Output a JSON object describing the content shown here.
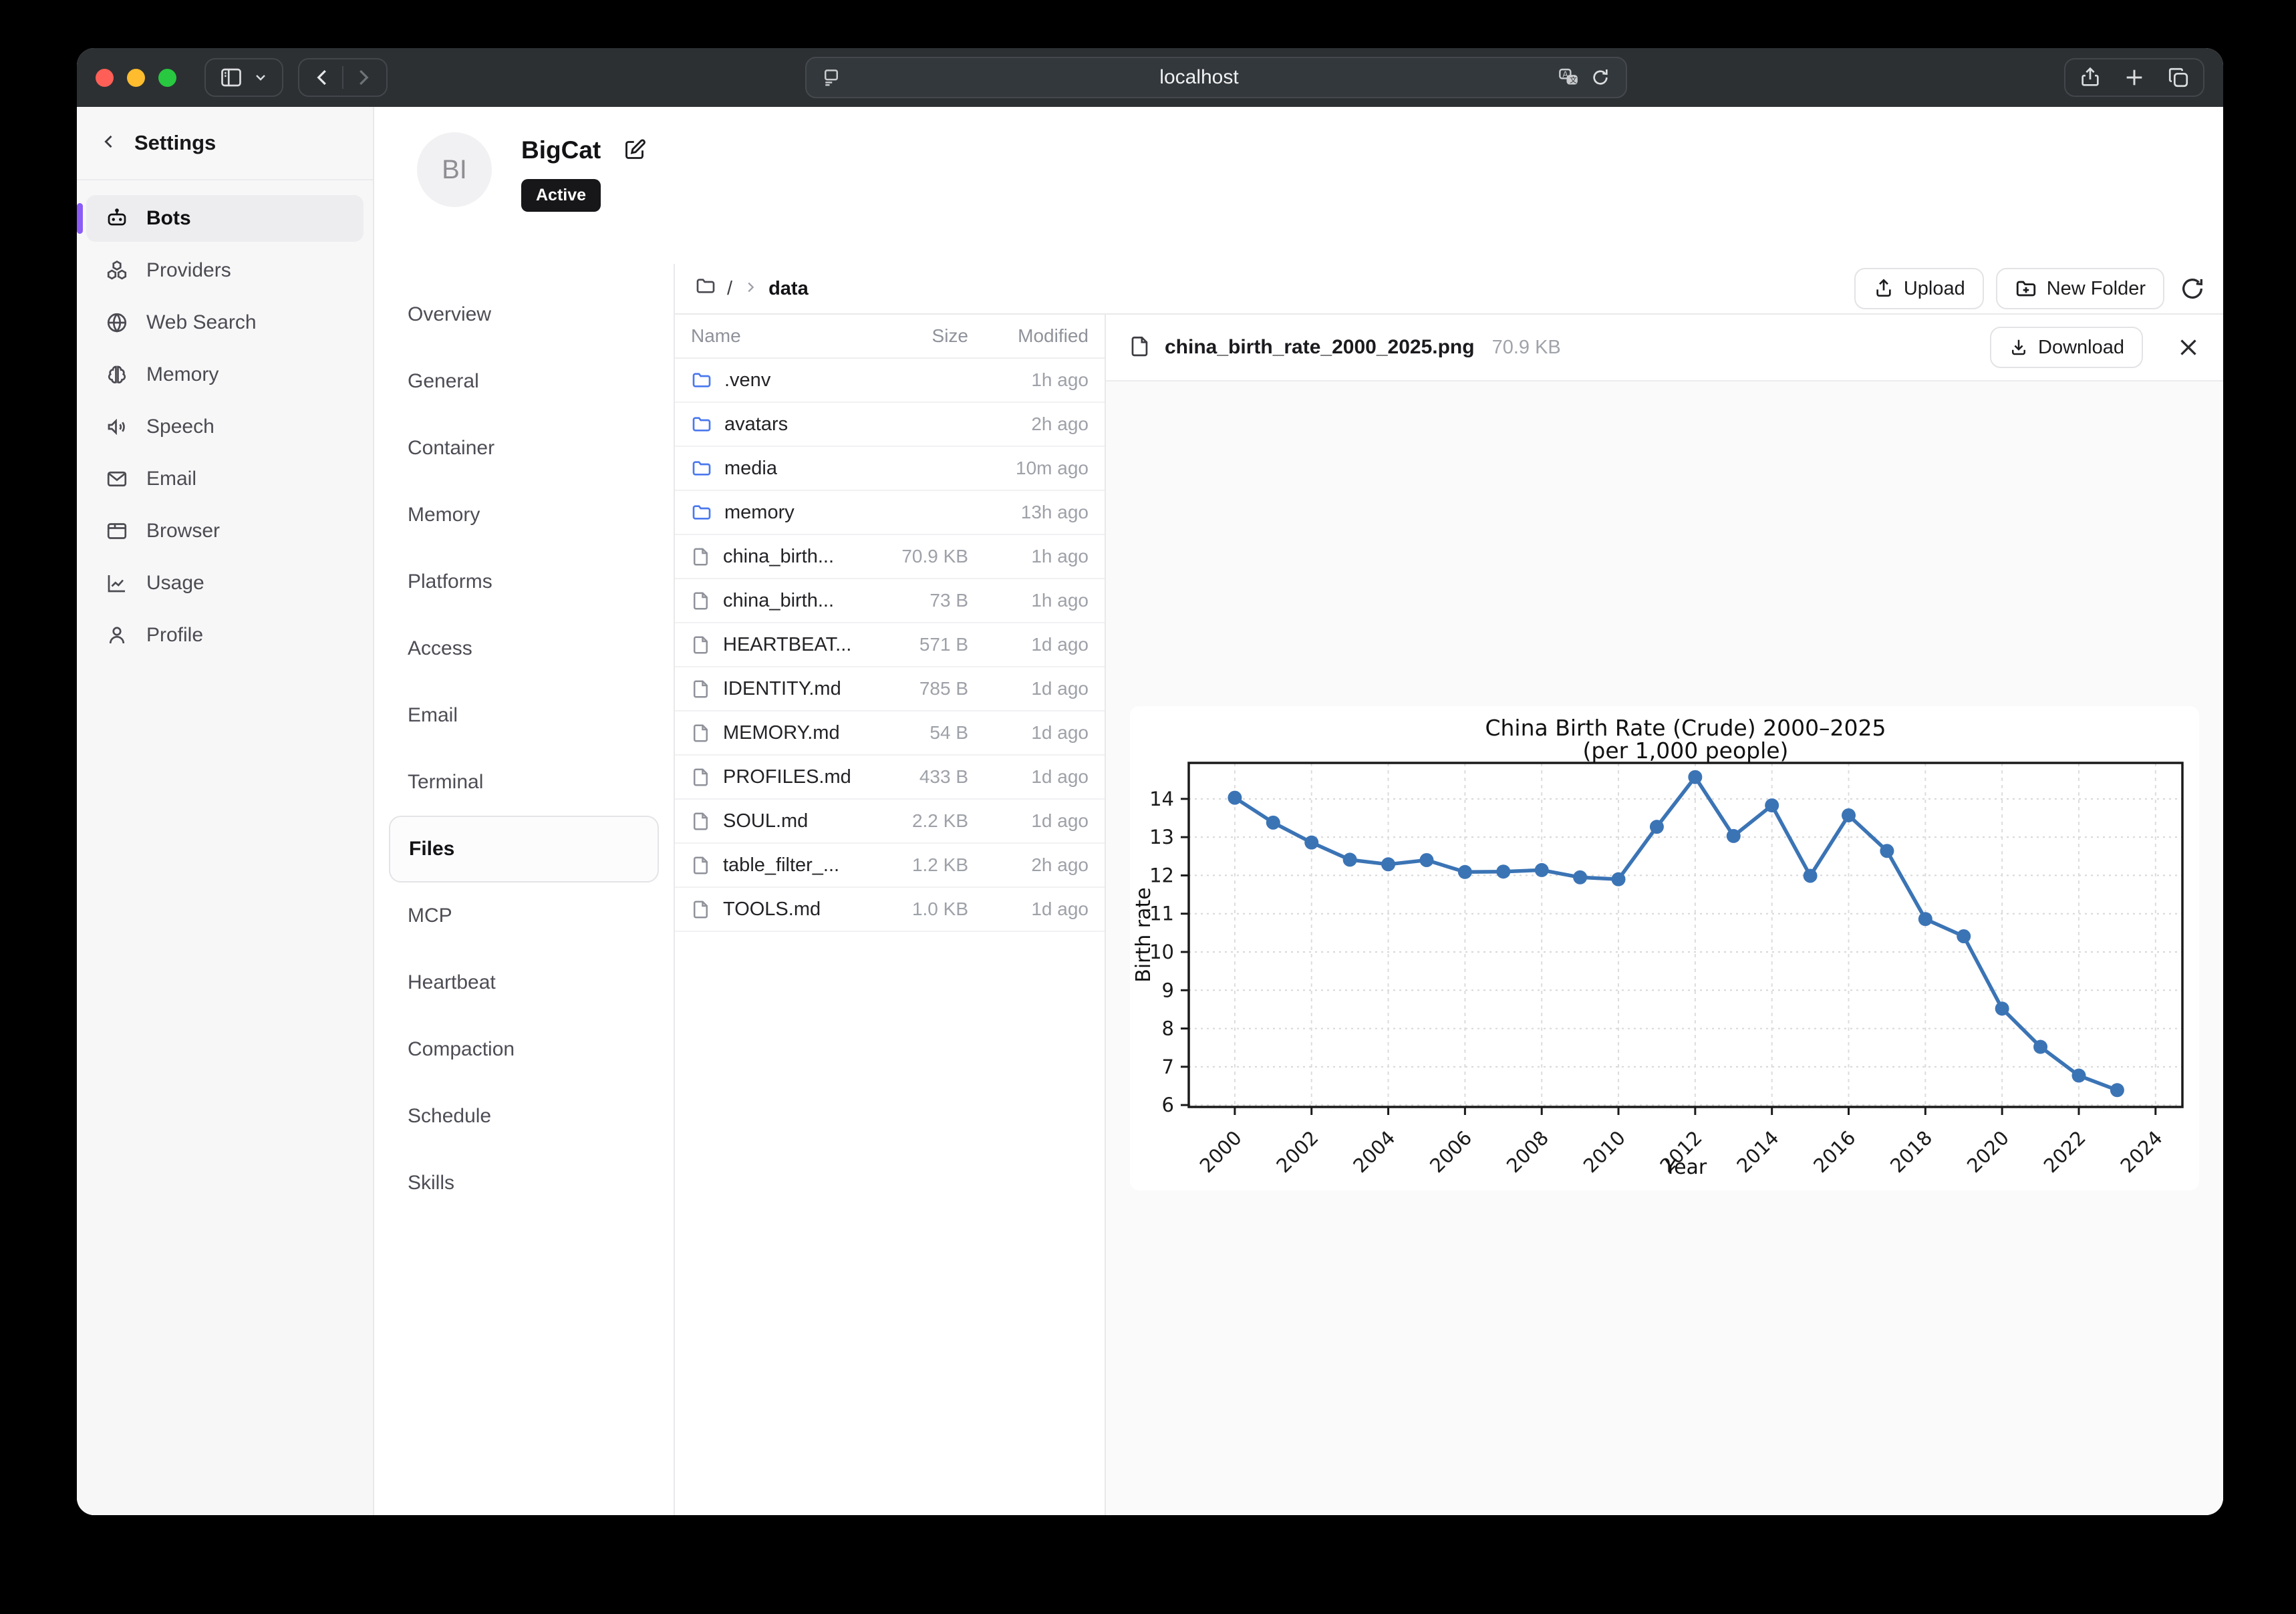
{
  "browser": {
    "url": "localhost",
    "traffic_lights": [
      "#ff5f57",
      "#febc2e",
      "#28c840"
    ]
  },
  "sidebar": {
    "title": "Settings",
    "accent_color": "#8b5cf6",
    "items": [
      {
        "label": "Bots",
        "icon": "robot-icon",
        "active": true
      },
      {
        "label": "Providers",
        "icon": "boxes-icon",
        "active": false
      },
      {
        "label": "Web Search",
        "icon": "globe-icon",
        "active": false
      },
      {
        "label": "Memory",
        "icon": "brain-icon",
        "active": false
      },
      {
        "label": "Speech",
        "icon": "speaker-icon",
        "active": false
      },
      {
        "label": "Email",
        "icon": "envelope-icon",
        "active": false
      },
      {
        "label": "Browser",
        "icon": "window-icon",
        "active": false
      },
      {
        "label": "Usage",
        "icon": "chart-icon",
        "active": false
      },
      {
        "label": "Profile",
        "icon": "person-icon",
        "active": false
      }
    ]
  },
  "profile": {
    "initials": "BI",
    "name": "BigCat",
    "status": "Active"
  },
  "subnav": {
    "items": [
      "Overview",
      "General",
      "Container",
      "Memory",
      "Platforms",
      "Access",
      "Email",
      "Terminal",
      "Files",
      "MCP",
      "Heartbeat",
      "Compaction",
      "Schedule",
      "Skills"
    ],
    "active": "Files"
  },
  "file_browser": {
    "breadcrumb": {
      "root": "/",
      "current": "data"
    },
    "toolbar": {
      "upload": "Upload",
      "new_folder": "New Folder"
    },
    "columns": {
      "name": "Name",
      "size": "Size",
      "modified": "Modified"
    },
    "folder_color": "#4a78ee",
    "rows": [
      {
        "name": ".venv",
        "type": "folder",
        "size": "",
        "modified": "1h ago"
      },
      {
        "name": "avatars",
        "type": "folder",
        "size": "",
        "modified": "2h ago"
      },
      {
        "name": "media",
        "type": "folder",
        "size": "",
        "modified": "10m ago"
      },
      {
        "name": "memory",
        "type": "folder",
        "size": "",
        "modified": "13h ago"
      },
      {
        "name": "china_birth...",
        "type": "file",
        "size": "70.9 KB",
        "modified": "1h ago"
      },
      {
        "name": "china_birth...",
        "type": "file",
        "size": "73 B",
        "modified": "1h ago"
      },
      {
        "name": "HEARTBEAT...",
        "type": "file",
        "size": "571 B",
        "modified": "1d ago"
      },
      {
        "name": "IDENTITY.md",
        "type": "file",
        "size": "785 B",
        "modified": "1d ago"
      },
      {
        "name": "MEMORY.md",
        "type": "file",
        "size": "54 B",
        "modified": "1d ago"
      },
      {
        "name": "PROFILES.md",
        "type": "file",
        "size": "433 B",
        "modified": "1d ago"
      },
      {
        "name": "SOUL.md",
        "type": "file",
        "size": "2.2 KB",
        "modified": "1d ago"
      },
      {
        "name": "table_filter_...",
        "type": "file",
        "size": "1.2 KB",
        "modified": "2h ago"
      },
      {
        "name": "TOOLS.md",
        "type": "file",
        "size": "1.0 KB",
        "modified": "1d ago"
      }
    ]
  },
  "preview": {
    "filename": "china_birth_rate_2000_2025.png",
    "size": "70.9 KB",
    "download_label": "Download"
  },
  "chart_data": {
    "type": "line",
    "title": "China Birth Rate (Crude) 2000–2025",
    "subtitle": "(per 1,000 people)",
    "xlabel": "Year",
    "ylabel": "Birth rate",
    "line_color": "#3b74b5",
    "grid": true,
    "xlim": [
      1998.8,
      2024.7
    ],
    "ylim": [
      5.95,
      14.94
    ],
    "xticks": [
      2000,
      2002,
      2004,
      2006,
      2008,
      2010,
      2012,
      2014,
      2016,
      2018,
      2020,
      2022,
      2024
    ],
    "yticks": [
      6,
      7,
      8,
      9,
      10,
      11,
      12,
      13,
      14
    ],
    "x": [
      2000,
      2001,
      2002,
      2003,
      2004,
      2005,
      2006,
      2007,
      2008,
      2009,
      2010,
      2011,
      2012,
      2013,
      2014,
      2015,
      2016,
      2017,
      2018,
      2019,
      2020,
      2021,
      2022,
      2023
    ],
    "series": [
      {
        "name": "Birth rate",
        "values": [
          14.03,
          13.38,
          12.86,
          12.41,
          12.29,
          12.4,
          12.09,
          12.1,
          12.14,
          11.95,
          11.9,
          13.27,
          14.57,
          13.03,
          13.83,
          11.99,
          13.57,
          12.64,
          10.86,
          10.41,
          8.52,
          7.52,
          6.77,
          6.39
        ]
      }
    ]
  }
}
